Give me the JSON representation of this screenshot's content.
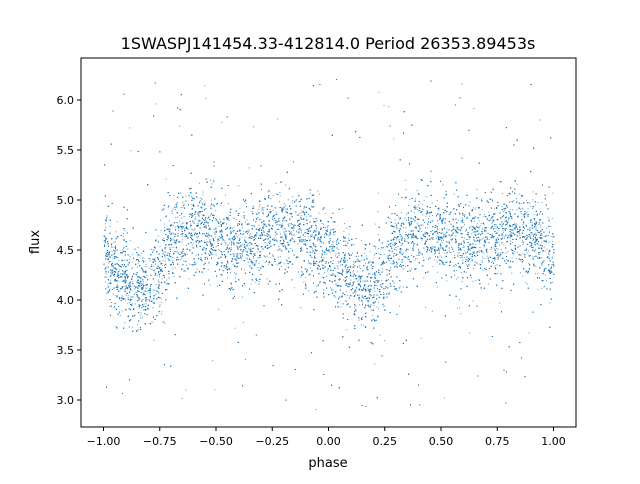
{
  "chart_data": {
    "type": "scatter",
    "title": "1SWASPJ141454.33-412814.0 Period 26353.89453s",
    "xlabel": "phase",
    "ylabel": "flux",
    "xlim": [
      -1.1,
      1.1
    ],
    "ylim": [
      2.73,
      6.42
    ],
    "xticks": [
      -1.0,
      -0.75,
      -0.5,
      -0.25,
      0.0,
      0.25,
      0.5,
      0.75,
      1.0
    ],
    "xtick_labels": [
      "−1.00",
      "−0.75",
      "−0.50",
      "−0.25",
      "0.00",
      "0.25",
      "0.50",
      "0.75",
      "1.00"
    ],
    "yticks": [
      3.0,
      3.5,
      4.0,
      4.5,
      5.0,
      5.5,
      6.0
    ],
    "ytick_labels": [
      "3.0",
      "3.5",
      "4.0",
      "4.5",
      "5.0",
      "5.5",
      "6.0"
    ],
    "grid": false,
    "marker_color": "#1f77b4",
    "phase_binned_mean_flux": {
      "phase": [
        -1.0,
        -0.95,
        -0.9,
        -0.85,
        -0.8,
        -0.75,
        -0.7,
        -0.65,
        -0.6,
        -0.55,
        -0.5,
        -0.45,
        -0.4,
        -0.35,
        -0.3,
        -0.25,
        -0.2,
        -0.15,
        -0.1,
        -0.05,
        0.0
      ],
      "flux": [
        4.45,
        4.3,
        4.2,
        4.15,
        4.15,
        4.3,
        4.6,
        4.7,
        4.72,
        4.68,
        4.6,
        4.55,
        4.55,
        4.58,
        4.62,
        4.65,
        4.68,
        4.7,
        4.65,
        4.55,
        4.45
      ],
      "flux_scatter": 0.22,
      "repeats_with_period_in_phase": 1.0
    }
  }
}
